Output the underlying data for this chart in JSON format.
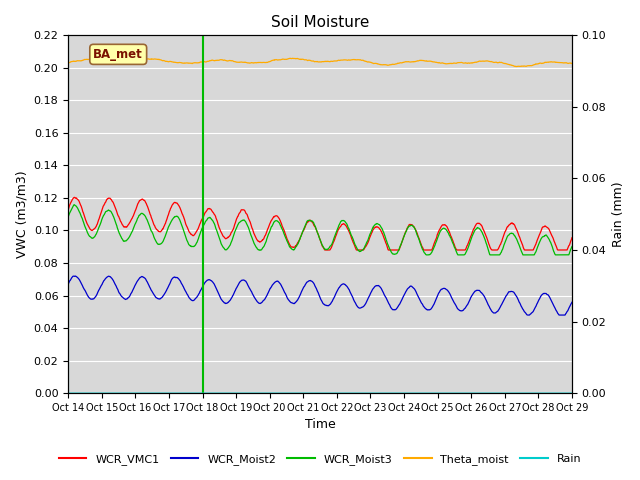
{
  "title": "Soil Moisture",
  "xlabel": "Time",
  "ylabel_left": "VWC (m3/m3)",
  "ylabel_right": "Rain (mm)",
  "ylim_left": [
    0.0,
    0.22
  ],
  "ylim_right": [
    0.0,
    0.1
  ],
  "yticks_left": [
    0.0,
    0.02,
    0.04,
    0.06,
    0.08,
    0.1,
    0.12,
    0.14,
    0.16,
    0.18,
    0.2,
    0.22
  ],
  "yticks_right": [
    0.0,
    0.02,
    0.04,
    0.06,
    0.08,
    0.1
  ],
  "xtick_labels": [
    "Oct 14",
    "Oct 15",
    "Oct 16",
    "Oct 17",
    "Oct 18",
    "Oct 19",
    "Oct 20",
    "Oct 21",
    "Oct 22",
    "Oct 23",
    "Oct 24",
    "Oct 25",
    "Oct 26",
    "Oct 27",
    "Oct 28",
    "Oct 29"
  ],
  "n_points": 1440,
  "annotation_text": "BA_met",
  "colors": {
    "WCR_VMC1": "#ff0000",
    "WCR_Moist2": "#0000cc",
    "WCR_Moist3": "#00bb00",
    "Theta_moist": "#ffaa00",
    "Rain": "#00cccc",
    "annotation_bg": "#ffffaa",
    "annotation_border": "#996633"
  },
  "background_color": "#d8d8d8",
  "fig_bg": "#ffffff"
}
